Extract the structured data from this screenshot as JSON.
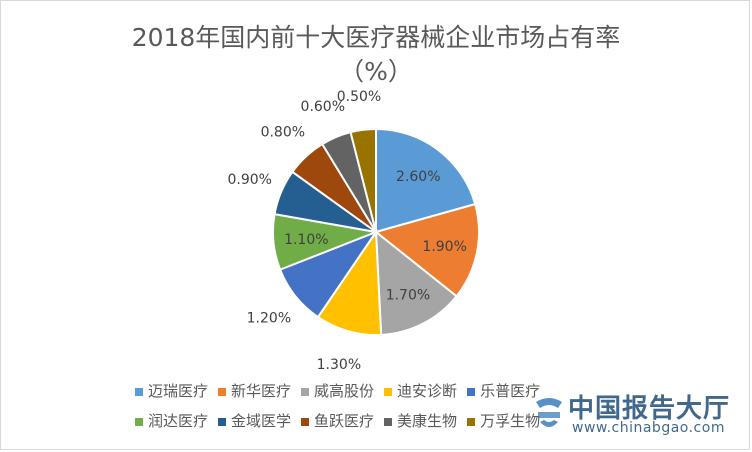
{
  "chart_data": {
    "type": "pie",
    "title_line1": "2018年国内前十大医疗器械企业市场占有率",
    "title_line2": "（%）",
    "unit": "%",
    "legend_position": "bottom",
    "slices": [
      {
        "name": "迈瑞医疗",
        "value": 2.6,
        "label": "2.60%",
        "color": "#5b9bd5"
      },
      {
        "name": "新华医疗",
        "value": 1.9,
        "label": "1.90%",
        "color": "#ed7d31"
      },
      {
        "name": "威高股份",
        "value": 1.7,
        "label": "1.70%",
        "color": "#a5a5a5"
      },
      {
        "name": "迪安诊断",
        "value": 1.3,
        "label": "1.30%",
        "color": "#ffc000"
      },
      {
        "name": "乐普医疗",
        "value": 1.2,
        "label": "1.20%",
        "color": "#4472c4"
      },
      {
        "name": "润达医疗",
        "value": 1.1,
        "label": "1.10%",
        "color": "#70ad47"
      },
      {
        "name": "金域医学",
        "value": 0.9,
        "label": "0.90%",
        "color": "#255e91"
      },
      {
        "name": "鱼跃医疗",
        "value": 0.8,
        "label": "0.80%",
        "color": "#9e480e"
      },
      {
        "name": "美康生物",
        "value": 0.6,
        "label": "0.60%",
        "color": "#636363"
      },
      {
        "name": "万孚生物",
        "value": 0.5,
        "label": "0.50%",
        "color": "#997300"
      }
    ]
  },
  "watermark": {
    "text": "中国报告大厅",
    "url": "www.chinabgao.com"
  }
}
